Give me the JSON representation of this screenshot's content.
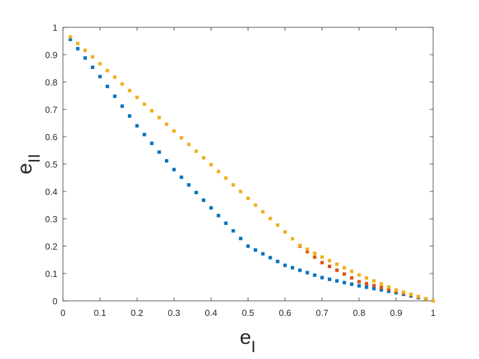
{
  "chart_data": {
    "type": "scatter",
    "x_label": {
      "text": "e",
      "subscript": "I"
    },
    "y_label": {
      "text": "e",
      "subscript": "II"
    },
    "xlim": [
      0,
      1
    ],
    "ylim": [
      0,
      1
    ],
    "xticks": [
      0,
      0.1,
      0.2,
      0.3,
      0.4,
      0.5,
      0.6,
      0.7,
      0.8,
      0.9,
      1
    ],
    "yticks": [
      0,
      0.1,
      0.2,
      0.3,
      0.4,
      0.5,
      0.6,
      0.7,
      0.8,
      0.9,
      1
    ],
    "box": true,
    "series": [
      {
        "color": "#0072bd",
        "x": [
          0.02,
          0.04,
          0.06,
          0.08,
          0.1,
          0.12,
          0.14,
          0.16,
          0.18,
          0.2,
          0.22,
          0.24,
          0.26,
          0.28,
          0.3,
          0.32,
          0.34,
          0.36,
          0.38,
          0.4,
          0.42,
          0.44,
          0.46,
          0.48,
          0.5,
          0.52,
          0.54,
          0.56,
          0.58,
          0.6,
          0.62,
          0.64,
          0.66,
          0.68,
          0.7,
          0.72,
          0.74,
          0.76,
          0.78,
          0.8,
          0.82,
          0.84,
          0.86,
          0.88,
          0.9,
          0.92,
          0.94,
          0.96,
          0.98,
          1.0
        ],
        "values": [
          0.956,
          0.922,
          0.888,
          0.854,
          0.82,
          0.784,
          0.748,
          0.712,
          0.676,
          0.64,
          0.608,
          0.576,
          0.544,
          0.512,
          0.48,
          0.452,
          0.424,
          0.396,
          0.368,
          0.34,
          0.312,
          0.284,
          0.256,
          0.228,
          0.2,
          0.186,
          0.172,
          0.158,
          0.144,
          0.13,
          0.121,
          0.112,
          0.103,
          0.094,
          0.085,
          0.079,
          0.073,
          0.067,
          0.061,
          0.055,
          0.05,
          0.045,
          0.04,
          0.035,
          0.03,
          0.024,
          0.018,
          0.012,
          0.006,
          0
        ]
      },
      {
        "color": "#d95319",
        "x": [
          0.64,
          0.66,
          0.68,
          0.7,
          0.72,
          0.74,
          0.76,
          0.78,
          0.8,
          0.82,
          0.84,
          0.86,
          0.88,
          0.9,
          0.92,
          0.94,
          0.96,
          0.98,
          1.0
        ],
        "values": [
          0.2,
          0.18,
          0.16,
          0.14,
          0.126,
          0.112,
          0.098,
          0.084,
          0.07,
          0.063,
          0.056,
          0.049,
          0.042,
          0.035,
          0.028,
          0.021,
          0.014,
          0.007,
          0
        ]
      },
      {
        "color": "#edb120",
        "x": [
          0.02,
          0.04,
          0.06,
          0.08,
          0.1,
          0.12,
          0.14,
          0.16,
          0.18,
          0.2,
          0.22,
          0.24,
          0.26,
          0.28,
          0.3,
          0.32,
          0.34,
          0.36,
          0.38,
          0.4,
          0.42,
          0.44,
          0.46,
          0.48,
          0.5,
          0.52,
          0.54,
          0.56,
          0.58,
          0.6,
          0.62,
          0.64,
          0.66,
          0.68,
          0.7,
          0.72,
          0.74,
          0.76,
          0.78,
          0.8,
          0.82,
          0.84,
          0.86,
          0.88,
          0.9,
          0.92,
          0.94,
          0.96,
          0.98,
          1.0
        ],
        "values": [
          0.965,
          0.941,
          0.916,
          0.892,
          0.867,
          0.842,
          0.818,
          0.793,
          0.769,
          0.744,
          0.719,
          0.695,
          0.67,
          0.646,
          0.621,
          0.596,
          0.572,
          0.547,
          0.523,
          0.498,
          0.473,
          0.449,
          0.424,
          0.4,
          0.375,
          0.35,
          0.326,
          0.301,
          0.277,
          0.252,
          0.227,
          0.203,
          0.189,
          0.174,
          0.16,
          0.147,
          0.134,
          0.121,
          0.108,
          0.095,
          0.084,
          0.073,
          0.062,
          0.051,
          0.04,
          0.032,
          0.024,
          0.016,
          0.008,
          0
        ]
      }
    ]
  }
}
